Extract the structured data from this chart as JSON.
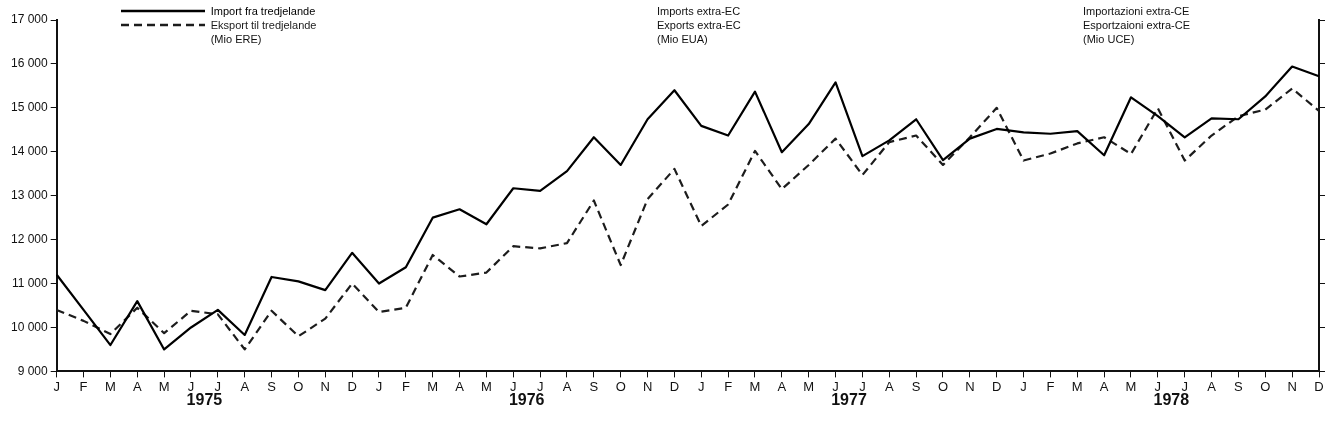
{
  "chart_data": {
    "type": "line",
    "categories": [
      "J",
      "F",
      "M",
      "A",
      "M",
      "J",
      "J",
      "A",
      "S",
      "O",
      "N",
      "D",
      "J",
      "F",
      "M",
      "A",
      "M",
      "J",
      "J",
      "A",
      "S",
      "O",
      "N",
      "D",
      "J",
      "F",
      "M",
      "A",
      "M",
      "J",
      "J",
      "A",
      "S",
      "O",
      "N",
      "D",
      "J",
      "F",
      "M",
      "A",
      "M",
      "J",
      "J",
      "A",
      "S",
      "O",
      "N",
      "D"
    ],
    "series": [
      {
        "name": "Import fra tredjelande",
        "color": "#000000",
        "line_style": "solid",
        "values": [
          11200,
          10400,
          9600,
          10600,
          9500,
          10000,
          10400,
          9830,
          11150,
          11050,
          10850,
          11700,
          11000,
          11370,
          12500,
          12690,
          12350,
          13170,
          13110,
          13560,
          14330,
          13700,
          14740,
          15400,
          14590,
          14370,
          15370,
          13990,
          14630,
          15580,
          13900,
          14260,
          14740,
          13810,
          14300,
          14520,
          14440,
          14410,
          14470,
          13920,
          15240,
          14810,
          14330,
          14760,
          14740,
          15260,
          15940,
          15720
        ]
      },
      {
        "name": "Eksport til tredjelande",
        "color": "#1c1c1c",
        "line_style": "dashed",
        "values": [
          10400,
          10150,
          9850,
          10450,
          9870,
          10380,
          10300,
          9500,
          10380,
          9800,
          10200,
          11000,
          10350,
          10450,
          11650,
          11160,
          11250,
          11850,
          11800,
          11920,
          12890,
          11420,
          12920,
          13610,
          12310,
          12800,
          14020,
          13150,
          13700,
          14300,
          13470,
          14220,
          14370,
          13700,
          14330,
          15000,
          13800,
          13960,
          14190,
          14330,
          13950,
          14990,
          13800,
          14370,
          14810,
          14960,
          15440,
          14930
        ]
      }
    ],
    "ylim": [
      9000,
      17000
    ],
    "yticks": [
      {
        "value": 9000,
        "label": "9 000"
      },
      {
        "value": 10000,
        "label": "10 000"
      },
      {
        "value": 11000,
        "label": "11 000"
      },
      {
        "value": 12000,
        "label": "12 000"
      },
      {
        "value": 13000,
        "label": "13 000"
      },
      {
        "value": 14000,
        "label": "14 000"
      },
      {
        "value": 15000,
        "label": "15 000"
      },
      {
        "value": 16000,
        "label": "16 000"
      },
      {
        "value": 17000,
        "label": "17 000"
      }
    ],
    "grid": false,
    "legend": "top left",
    "marker": "none",
    "annotations": [
      "(Mio ERE)",
      "Imports extra-EC",
      "Exports extra-EC",
      "(Mio EUA)",
      "Importazioni extra-CE",
      "Esportzaioni extra-CE",
      "(Mio UCE)",
      "1975",
      "1976",
      "1977",
      "1978"
    ]
  }
}
